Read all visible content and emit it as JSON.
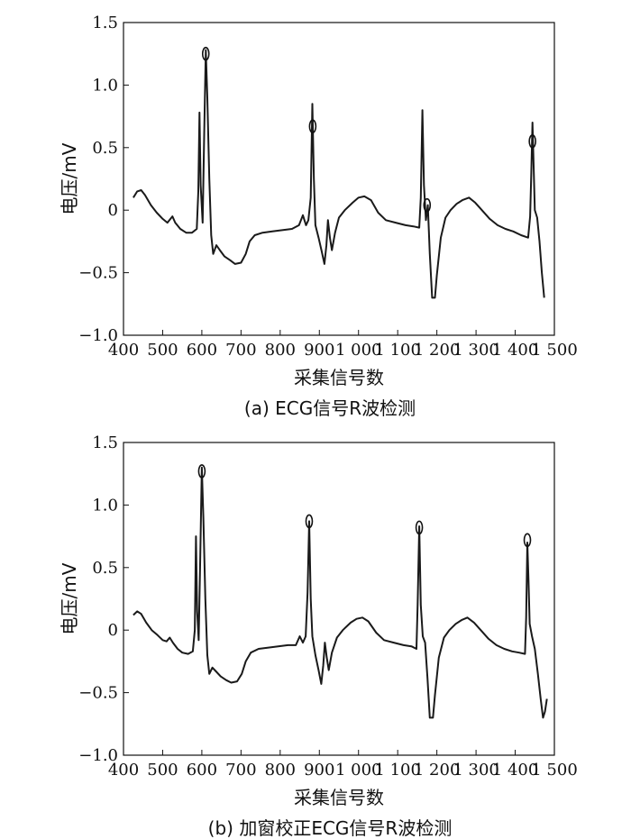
{
  "chart_data": [
    {
      "type": "line",
      "caption": "(a) ECG信号R波检测",
      "xlabel": "采集信号数",
      "ylabel": "电压/mV",
      "xlim": [
        400,
        1500
      ],
      "ylim": [
        -1.0,
        1.5
      ],
      "x_ticks": [
        400,
        500,
        600,
        700,
        800,
        900,
        1000,
        1100,
        1200,
        1300,
        1400,
        1500
      ],
      "x_tick_labels": [
        "400",
        "500",
        "600",
        "700",
        "800",
        "900",
        "1 000",
        "1 100",
        "1 200",
        "1 300",
        "1 400",
        "1 500"
      ],
      "y_ticks": [
        1.5,
        1.0,
        0.5,
        0,
        -0.5,
        -1.0
      ],
      "y_tick_labels": [
        "1.5",
        "1.0",
        "0.5",
        "0",
        "−0.5",
        "−1.0"
      ],
      "grid": false,
      "series": [
        {
          "points": [
            [
              425,
              0.1
            ],
            [
              435,
              0.15
            ],
            [
              445,
              0.16
            ],
            [
              455,
              0.12
            ],
            [
              470,
              0.04
            ],
            [
              485,
              -0.02
            ],
            [
              500,
              -0.07
            ],
            [
              512,
              -0.1
            ],
            [
              525,
              -0.05
            ],
            [
              532,
              -0.1
            ],
            [
              545,
              -0.15
            ],
            [
              560,
              -0.18
            ],
            [
              575,
              -0.18
            ],
            [
              587,
              -0.15
            ],
            [
              591,
              0.15
            ],
            [
              594,
              0.78
            ],
            [
              597,
              0.2
            ],
            [
              602,
              -0.1
            ],
            [
              606,
              0.6
            ],
            [
              610,
              1.28
            ],
            [
              614,
              0.9
            ],
            [
              619,
              0.25
            ],
            [
              624,
              -0.2
            ],
            [
              629,
              -0.35
            ],
            [
              637,
              -0.28
            ],
            [
              646,
              -0.32
            ],
            [
              658,
              -0.37
            ],
            [
              672,
              -0.4
            ],
            [
              685,
              -0.43
            ],
            [
              700,
              -0.42
            ],
            [
              712,
              -0.35
            ],
            [
              722,
              -0.25
            ],
            [
              735,
              -0.2
            ],
            [
              755,
              -0.18
            ],
            [
              780,
              -0.17
            ],
            [
              805,
              -0.16
            ],
            [
              830,
              -0.15
            ],
            [
              848,
              -0.12
            ],
            [
              858,
              -0.04
            ],
            [
              866,
              -0.12
            ],
            [
              872,
              -0.08
            ],
            [
              878,
              0.1
            ],
            [
              882,
              0.85
            ],
            [
              886,
              0.25
            ],
            [
              890,
              -0.12
            ],
            [
              898,
              -0.22
            ],
            [
              906,
              -0.33
            ],
            [
              913,
              -0.43
            ],
            [
              918,
              -0.28
            ],
            [
              922,
              -0.08
            ],
            [
              927,
              -0.22
            ],
            [
              932,
              -0.32
            ],
            [
              940,
              -0.18
            ],
            [
              950,
              -0.06
            ],
            [
              965,
              0.0
            ],
            [
              985,
              0.06
            ],
            [
              1000,
              0.1
            ],
            [
              1015,
              0.11
            ],
            [
              1032,
              0.08
            ],
            [
              1050,
              -0.02
            ],
            [
              1070,
              -0.08
            ],
            [
              1095,
              -0.1
            ],
            [
              1120,
              -0.12
            ],
            [
              1140,
              -0.13
            ],
            [
              1155,
              -0.14
            ],
            [
              1159,
              0.1
            ],
            [
              1163,
              0.8
            ],
            [
              1167,
              0.2
            ],
            [
              1172,
              -0.08
            ],
            [
              1177,
              0.04
            ],
            [
              1182,
              -0.35
            ],
            [
              1188,
              -0.7
            ],
            [
              1195,
              -0.7
            ],
            [
              1200,
              -0.52
            ],
            [
              1210,
              -0.22
            ],
            [
              1222,
              -0.06
            ],
            [
              1235,
              0.0
            ],
            [
              1250,
              0.05
            ],
            [
              1265,
              0.08
            ],
            [
              1282,
              0.1
            ],
            [
              1298,
              0.06
            ],
            [
              1315,
              0.0
            ],
            [
              1335,
              -0.07
            ],
            [
              1355,
              -0.12
            ],
            [
              1375,
              -0.15
            ],
            [
              1395,
              -0.17
            ],
            [
              1415,
              -0.2
            ],
            [
              1433,
              -0.22
            ],
            [
              1438,
              -0.05
            ],
            [
              1441,
              0.3
            ],
            [
              1444,
              0.7
            ],
            [
              1447,
              0.35
            ],
            [
              1450,
              0.0
            ],
            [
              1456,
              -0.06
            ],
            [
              1462,
              -0.25
            ],
            [
              1468,
              -0.5
            ],
            [
              1474,
              -0.7
            ]
          ]
        }
      ],
      "markers": [
        [
          610,
          1.25
        ],
        [
          883,
          0.67
        ],
        [
          1175,
          0.04
        ],
        [
          1444,
          0.55
        ]
      ]
    },
    {
      "type": "line",
      "caption": "(b) 加窗校正ECG信号R波检测",
      "xlabel": "采集信号数",
      "ylabel": "电压/mV",
      "xlim": [
        400,
        1500
      ],
      "ylim": [
        -1.0,
        1.5
      ],
      "x_ticks": [
        400,
        500,
        600,
        700,
        800,
        900,
        1000,
        1100,
        1200,
        1300,
        1400,
        1500
      ],
      "x_tick_labels": [
        "400",
        "500",
        "600",
        "700",
        "800",
        "900",
        "1 000",
        "1 100",
        "1 200",
        "1 300",
        "1 400",
        "1 500"
      ],
      "y_ticks": [
        1.5,
        1.0,
        0.5,
        0,
        -0.5,
        -1.0
      ],
      "y_tick_labels": [
        "1.5",
        "1.0",
        "0.5",
        "0",
        "−0.5",
        "−1.0"
      ],
      "grid": false,
      "series": [
        {
          "points": [
            [
              425,
              0.12
            ],
            [
              435,
              0.15
            ],
            [
              445,
              0.13
            ],
            [
              458,
              0.06
            ],
            [
              472,
              0.0
            ],
            [
              487,
              -0.04
            ],
            [
              500,
              -0.08
            ],
            [
              510,
              -0.09
            ],
            [
              518,
              -0.06
            ],
            [
              526,
              -0.1
            ],
            [
              538,
              -0.15
            ],
            [
              550,
              -0.18
            ],
            [
              565,
              -0.19
            ],
            [
              577,
              -0.17
            ],
            [
              582,
              0.0
            ],
            [
              585,
              0.75
            ],
            [
              588,
              0.15
            ],
            [
              592,
              -0.08
            ],
            [
              596,
              0.6
            ],
            [
              600,
              1.3
            ],
            [
              604,
              0.9
            ],
            [
              609,
              0.25
            ],
            [
              614,
              -0.2
            ],
            [
              619,
              -0.35
            ],
            [
              627,
              -0.3
            ],
            [
              636,
              -0.33
            ],
            [
              648,
              -0.37
            ],
            [
              662,
              -0.4
            ],
            [
              675,
              -0.42
            ],
            [
              690,
              -0.41
            ],
            [
              702,
              -0.35
            ],
            [
              712,
              -0.25
            ],
            [
              725,
              -0.18
            ],
            [
              745,
              -0.15
            ],
            [
              770,
              -0.14
            ],
            [
              795,
              -0.13
            ],
            [
              820,
              -0.12
            ],
            [
              840,
              -0.12
            ],
            [
              850,
              -0.05
            ],
            [
              858,
              -0.1
            ],
            [
              865,
              -0.05
            ],
            [
              870,
              0.3
            ],
            [
              874,
              0.87
            ],
            [
              878,
              0.25
            ],
            [
              882,
              -0.05
            ],
            [
              890,
              -0.2
            ],
            [
              898,
              -0.32
            ],
            [
              905,
              -0.43
            ],
            [
              910,
              -0.28
            ],
            [
              914,
              -0.1
            ],
            [
              919,
              -0.22
            ],
            [
              924,
              -0.32
            ],
            [
              932,
              -0.18
            ],
            [
              945,
              -0.06
            ],
            [
              960,
              0.0
            ],
            [
              980,
              0.06
            ],
            [
              995,
              0.09
            ],
            [
              1010,
              0.1
            ],
            [
              1025,
              0.07
            ],
            [
              1045,
              -0.02
            ],
            [
              1065,
              -0.08
            ],
            [
              1090,
              -0.1
            ],
            [
              1115,
              -0.12
            ],
            [
              1135,
              -0.13
            ],
            [
              1148,
              -0.15
            ],
            [
              1151,
              0.2
            ],
            [
              1155,
              0.83
            ],
            [
              1159,
              0.2
            ],
            [
              1164,
              -0.05
            ],
            [
              1170,
              -0.1
            ],
            [
              1176,
              -0.38
            ],
            [
              1182,
              -0.7
            ],
            [
              1190,
              -0.7
            ],
            [
              1195,
              -0.52
            ],
            [
              1205,
              -0.22
            ],
            [
              1218,
              -0.06
            ],
            [
              1232,
              0.0
            ],
            [
              1248,
              0.05
            ],
            [
              1263,
              0.08
            ],
            [
              1278,
              0.1
            ],
            [
              1295,
              0.06
            ],
            [
              1312,
              0.0
            ],
            [
              1332,
              -0.07
            ],
            [
              1352,
              -0.12
            ],
            [
              1372,
              -0.15
            ],
            [
              1392,
              -0.17
            ],
            [
              1410,
              -0.18
            ],
            [
              1425,
              -0.19
            ],
            [
              1428,
              0.1
            ],
            [
              1431,
              0.7
            ],
            [
              1434,
              0.4
            ],
            [
              1437,
              0.05
            ],
            [
              1443,
              -0.05
            ],
            [
              1450,
              -0.15
            ],
            [
              1458,
              -0.35
            ],
            [
              1465,
              -0.55
            ],
            [
              1471,
              -0.7
            ],
            [
              1476,
              -0.65
            ],
            [
              1481,
              -0.55
            ]
          ]
        }
      ],
      "markers": [
        [
          600,
          1.27
        ],
        [
          874,
          0.87
        ],
        [
          1155,
          0.82
        ],
        [
          1431,
          0.72
        ]
      ]
    }
  ]
}
